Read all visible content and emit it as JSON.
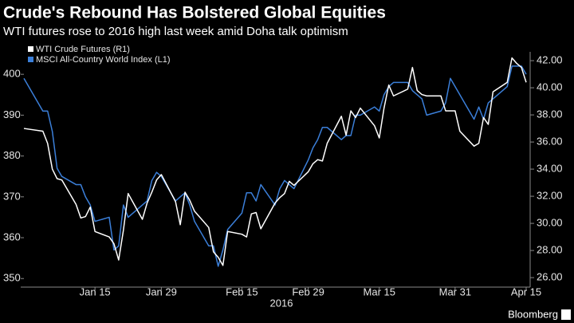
{
  "chart_data": {
    "type": "line",
    "title": "Crude's Rebound Has Bolstered Global Equities",
    "subtitle": "WTI futures rose to 2016 high last week amid Doha talk optimism",
    "xlabel": "2016",
    "source": "Bloomberg",
    "x": [
      "2015-12-31",
      "2016-01-04",
      "2016-01-05",
      "2016-01-06",
      "2016-01-07",
      "2016-01-08",
      "2016-01-11",
      "2016-01-12",
      "2016-01-13",
      "2016-01-14",
      "2016-01-15",
      "2016-01-18",
      "2016-01-19",
      "2016-01-20",
      "2016-01-21",
      "2016-01-22",
      "2016-01-25",
      "2016-01-26",
      "2016-01-27",
      "2016-01-28",
      "2016-01-29",
      "2016-02-01",
      "2016-02-02",
      "2016-02-03",
      "2016-02-04",
      "2016-02-05",
      "2016-02-08",
      "2016-02-09",
      "2016-02-10",
      "2016-02-11",
      "2016-02-12",
      "2016-02-15",
      "2016-02-16",
      "2016-02-17",
      "2016-02-18",
      "2016-02-19",
      "2016-02-22",
      "2016-02-23",
      "2016-02-24",
      "2016-02-25",
      "2016-02-26",
      "2016-02-29",
      "2016-03-01",
      "2016-03-02",
      "2016-03-03",
      "2016-03-04",
      "2016-03-07",
      "2016-03-08",
      "2016-03-09",
      "2016-03-10",
      "2016-03-11",
      "2016-03-14",
      "2016-03-15",
      "2016-03-16",
      "2016-03-17",
      "2016-03-18",
      "2016-03-21",
      "2016-03-22",
      "2016-03-23",
      "2016-03-24",
      "2016-03-25",
      "2016-03-28",
      "2016-03-29",
      "2016-03-30",
      "2016-03-31",
      "2016-04-01",
      "2016-04-04",
      "2016-04-05",
      "2016-04-06",
      "2016-04-07",
      "2016-04-08",
      "2016-04-11",
      "2016-04-12",
      "2016-04-13",
      "2016-04-14",
      "2016-04-15"
    ],
    "xlim": [
      "2015-12-31",
      "2016-04-15"
    ],
    "xticks": [
      {
        "value": "2016-01-15",
        "label": "Jan 15"
      },
      {
        "value": "2016-01-29",
        "label": "Jan 29"
      },
      {
        "value": "2016-02-15",
        "label": "Feb 15"
      },
      {
        "value": "2016-02-29",
        "label": "Feb 29"
      },
      {
        "value": "2016-03-15",
        "label": "Mar 15"
      },
      {
        "value": "2016-03-31",
        "label": "Mar 31"
      },
      {
        "value": "2016-04-15",
        "label": "Apr 15"
      }
    ],
    "series": [
      {
        "name": "WTI Crude Futures (R1)",
        "color": "#ffffff",
        "axis": "y2",
        "values": [
          37.0,
          36.8,
          35.9,
          34.0,
          33.3,
          33.2,
          31.4,
          30.4,
          30.5,
          31.2,
          29.4,
          29.0,
          28.5,
          27.3,
          29.5,
          32.2,
          30.3,
          31.5,
          32.3,
          33.2,
          33.6,
          31.6,
          29.9,
          32.3,
          31.7,
          30.9,
          29.7,
          27.9,
          27.5,
          26.9,
          29.4,
          29.2,
          29.0,
          30.7,
          30.8,
          29.6,
          31.5,
          31.9,
          32.2,
          33.1,
          32.8,
          33.8,
          34.4,
          34.7,
          34.6,
          35.9,
          37.9,
          36.5,
          38.3,
          37.8,
          38.5,
          37.2,
          36.3,
          38.5,
          40.2,
          39.4,
          39.9,
          41.5,
          39.8,
          39.5,
          39.4,
          39.4,
          38.3,
          38.3,
          38.3,
          36.8,
          35.7,
          35.9,
          37.8,
          37.3,
          39.7,
          40.4,
          42.2,
          41.8,
          41.5,
          40.4
        ]
      },
      {
        "name": "MSCI All-Country World Index (L1)",
        "color": "#3b7fd9",
        "values": [
          399,
          391,
          391,
          386,
          377,
          375,
          373,
          373,
          370,
          368,
          364,
          365,
          357,
          358,
          368,
          365,
          368,
          369,
          374,
          376,
          375,
          369,
          370,
          371,
          368,
          364,
          358,
          358,
          353,
          357,
          362,
          366,
          371,
          371,
          369,
          373,
          368,
          372,
          374,
          373,
          372,
          379,
          382,
          384,
          387,
          387,
          384,
          385,
          385,
          390,
          390,
          392,
          391,
          395,
          397,
          398,
          398,
          396,
          395,
          394,
          390,
          391,
          393,
          399,
          397,
          395,
          389,
          392,
          389,
          393,
          394,
          397,
          402,
          402,
          402,
          400
        ]
      }
    ],
    "ylim": [
      347.9,
      405.5
    ],
    "yticks": [
      350,
      360,
      370,
      380,
      390,
      400
    ],
    "y2lim": [
      25.3,
      42.65
    ],
    "y2ticks": [
      {
        "value": 26,
        "label": "26.00"
      },
      {
        "value": 28,
        "label": "28.00"
      },
      {
        "value": 30,
        "label": "30.00"
      },
      {
        "value": 32,
        "label": "32.00"
      },
      {
        "value": 34,
        "label": "34.00"
      },
      {
        "value": 36,
        "label": "36.00"
      },
      {
        "value": 38,
        "label": "38.00"
      },
      {
        "value": 40,
        "label": "40.00"
      },
      {
        "value": 42,
        "label": "42.00"
      }
    ],
    "legend": "top-left"
  }
}
